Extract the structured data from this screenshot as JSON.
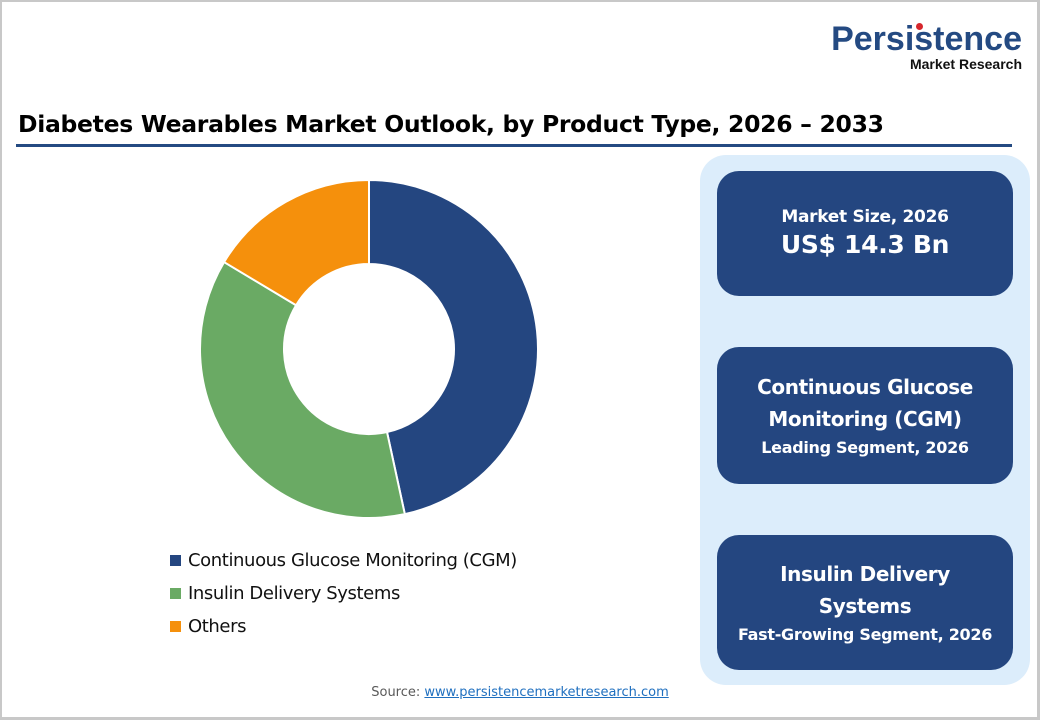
{
  "logo": {
    "brand": "Persistence",
    "tagline": "Market Research",
    "color": "#244a82",
    "dot_color": "#d6262c"
  },
  "header": {
    "title": "Diabetes Wearables Market Outlook, by Product Type, 2026 – 2033",
    "rule_color": "#244a82"
  },
  "chart_data": {
    "type": "pie",
    "variant": "donut",
    "title": "Diabetes Wearables Market Outlook, by Product Type, 2026 – 2033",
    "categories": [
      "Continuous Glucose Monitoring (CGM)",
      "Insulin Delivery Systems",
      "Others"
    ],
    "values": [
      46.6,
      37.0,
      16.4
    ],
    "unit": "% share (estimated from slice angles)",
    "colors": [
      "#244680",
      "#6aaa64",
      "#f5900c"
    ],
    "start_angle_deg": 0,
    "direction": "clockwise",
    "legend_position": "bottom",
    "data_labels": false
  },
  "legend": {
    "items": [
      {
        "label": "Continuous Glucose Monitoring (CGM)",
        "color": "#244680"
      },
      {
        "label": "Insulin Delivery Systems",
        "color": "#6aaa64"
      },
      {
        "label": "Others",
        "color": "#f5900c"
      }
    ]
  },
  "side_panel": {
    "background": "#dcedfb",
    "card_color": "#244680",
    "cards": [
      {
        "label": "Market Size, 2026",
        "value": "US$ 14.3 Bn"
      },
      {
        "heading_line1": "Continuous Glucose",
        "heading_line2": "Monitoring (CGM)",
        "sub": "Leading Segment, 2026"
      },
      {
        "heading_line1": "Insulin Delivery",
        "heading_line2": "Systems",
        "sub": "Fast-Growing Segment, 2026"
      }
    ]
  },
  "footer": {
    "source_label": "Source: ",
    "source_link": "www.persistencemarketresearch.com"
  }
}
